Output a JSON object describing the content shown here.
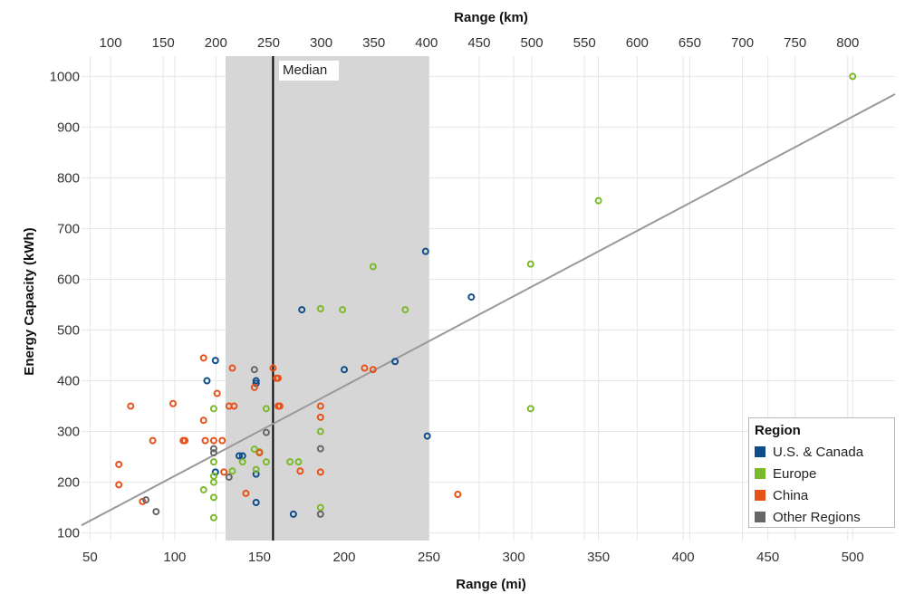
{
  "chart_data": {
    "type": "scatter",
    "xlabel": "Range (mi)",
    "x2label": "Range (km)",
    "ylabel": "Energy Capacity (kWh)",
    "xlim": [
      45,
      525
    ],
    "ylim": [
      85,
      1040
    ],
    "x_ticks": [
      50,
      100,
      150,
      200,
      250,
      300,
      350,
      400,
      450,
      500
    ],
    "x2_ticks": [
      100,
      150,
      200,
      250,
      300,
      350,
      400,
      450,
      500,
      550,
      600,
      650,
      700,
      750,
      800
    ],
    "y_ticks": [
      100,
      200,
      300,
      400,
      500,
      600,
      700,
      800,
      900,
      1000
    ],
    "grid": true,
    "median_band": {
      "from": 130,
      "to": 250
    },
    "median": {
      "x": 158,
      "label": "Median"
    },
    "trendline": {
      "x": [
        45,
        525
      ],
      "y": [
        115,
        965
      ]
    },
    "legend": {
      "title": "Region",
      "position": "bottom-right"
    },
    "series": [
      {
        "name": "U.S. & Canada",
        "color": "#0f4c8a",
        "points": [
          [
            124,
            440
          ],
          [
            119,
            400
          ],
          [
            124,
            220
          ],
          [
            140,
            252
          ],
          [
            138,
            252
          ],
          [
            148,
            400
          ],
          [
            148,
            395
          ],
          [
            148,
            216
          ],
          [
            148,
            160
          ],
          [
            170,
            137
          ],
          [
            175,
            540
          ],
          [
            200,
            422
          ],
          [
            230,
            438
          ],
          [
            248,
            655
          ],
          [
            249,
            291
          ],
          [
            275,
            565
          ]
        ]
      },
      {
        "name": "Europe",
        "color": "#7aba2a",
        "points": [
          [
            123,
            345
          ],
          [
            123,
            240
          ],
          [
            123,
            212
          ],
          [
            123,
            200
          ],
          [
            123,
            170
          ],
          [
            123,
            130
          ],
          [
            117,
            185
          ],
          [
            134,
            222
          ],
          [
            140,
            240
          ],
          [
            147,
            265
          ],
          [
            148,
            225
          ],
          [
            150,
            260
          ],
          [
            154,
            240
          ],
          [
            154,
            345
          ],
          [
            168,
            240
          ],
          [
            173,
            240
          ],
          [
            186,
            542
          ],
          [
            186,
            300
          ],
          [
            186,
            150
          ],
          [
            199,
            540
          ],
          [
            217,
            625
          ],
          [
            236,
            540
          ],
          [
            310,
            630
          ],
          [
            310,
            345
          ],
          [
            350,
            755
          ],
          [
            500,
            1000
          ]
        ]
      },
      {
        "name": "China",
        "color": "#e8521a",
        "points": [
          [
            67,
            235
          ],
          [
            67,
            195
          ],
          [
            74,
            350
          ],
          [
            81,
            162
          ],
          [
            87,
            282
          ],
          [
            99,
            355
          ],
          [
            105,
            282
          ],
          [
            106,
            282
          ],
          [
            117,
            445
          ],
          [
            117,
            322
          ],
          [
            118,
            282
          ],
          [
            123,
            282
          ],
          [
            125,
            375
          ],
          [
            128,
            282
          ],
          [
            129,
            220
          ],
          [
            132,
            350
          ],
          [
            134,
            425
          ],
          [
            135,
            350
          ],
          [
            142,
            178
          ],
          [
            147,
            387
          ],
          [
            150,
            258
          ],
          [
            158,
            425
          ],
          [
            160,
            405
          ],
          [
            161,
            350
          ],
          [
            161,
            405
          ],
          [
            162,
            350
          ],
          [
            174,
            222
          ],
          [
            186,
            350
          ],
          [
            186,
            328
          ],
          [
            186,
            220
          ],
          [
            212,
            425
          ],
          [
            217,
            422
          ],
          [
            267,
            176
          ]
        ]
      },
      {
        "name": "Other Regions",
        "color": "#666666",
        "points": [
          [
            83,
            165
          ],
          [
            89,
            142
          ],
          [
            123,
            266
          ],
          [
            123,
            258
          ],
          [
            132,
            210
          ],
          [
            147,
            422
          ],
          [
            154,
            298
          ],
          [
            186,
            266
          ],
          [
            186,
            137
          ]
        ]
      }
    ]
  }
}
